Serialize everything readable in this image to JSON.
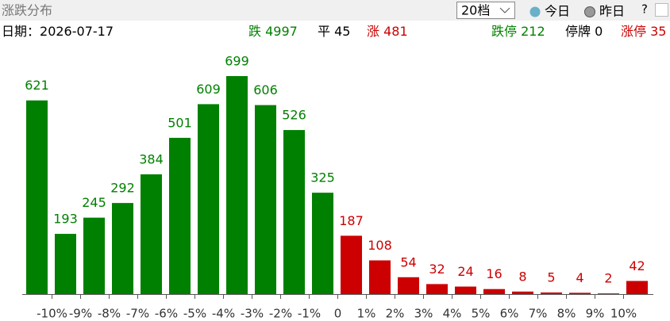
{
  "header": {
    "title": "涨跌分布",
    "select": "20档",
    "options": [
      "今日",
      "昨日"
    ],
    "help": "?"
  },
  "info": {
    "date_label": "日期：",
    "date": "2026-07-17",
    "stats": [
      {
        "label": "跌",
        "value": 4997,
        "color": "#008000"
      },
      {
        "label": "平",
        "value": 45,
        "color": "#000000"
      },
      {
        "label": "涨",
        "value": 481,
        "color": "#cc0000"
      },
      {
        "label": "跌停",
        "value": 212,
        "color": "#008000"
      },
      {
        "label": "停牌",
        "value": 0,
        "color": "#000000"
      },
      {
        "label": "涨停",
        "value": 35,
        "color": "#cc0000"
      }
    ]
  },
  "chart_data": {
    "type": "bar",
    "boundaries": [
      "-10%",
      "-9%",
      "-8%",
      "-7%",
      "-6%",
      "-5%",
      "-4%",
      "-3%",
      "-2%",
      "-1%",
      "0",
      "1%",
      "2%",
      "3%",
      "4%",
      "5%",
      "6%",
      "7%",
      "8%",
      "9%",
      "10%"
    ],
    "values": [
      621,
      193,
      245,
      292,
      384,
      501,
      609,
      699,
      606,
      526,
      325,
      187,
      108,
      54,
      32,
      24,
      16,
      8,
      5,
      4,
      2,
      42
    ],
    "colors": [
      "#008000",
      "#008000",
      "#008000",
      "#008000",
      "#008000",
      "#008000",
      "#008000",
      "#008000",
      "#008000",
      "#008000",
      "#008000",
      "#cc0000",
      "#cc0000",
      "#cc0000",
      "#cc0000",
      "#cc0000",
      "#cc0000",
      "#cc0000",
      "#cc0000",
      "#cc0000",
      "#cc0000",
      "#cc0000"
    ]
  }
}
